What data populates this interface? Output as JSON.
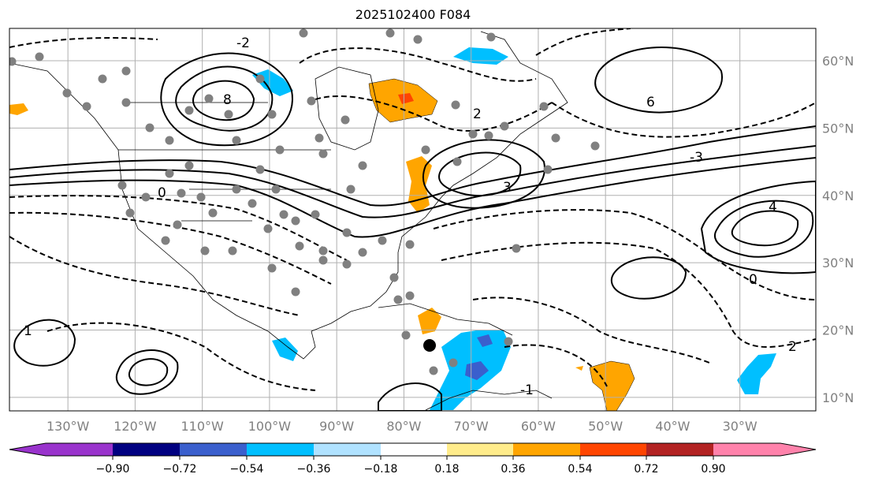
{
  "title": "2025102400 F084",
  "map": {
    "lon_range": [
      -138.7,
      -18.7
    ],
    "lat_range": [
      8,
      64.8
    ],
    "lon_ticks": [
      {
        "value": -130,
        "label": "130°W"
      },
      {
        "value": -120,
        "label": "120°W"
      },
      {
        "value": -110,
        "label": "110°W"
      },
      {
        "value": -100,
        "label": "100°W"
      },
      {
        "value": -90,
        "label": "90°W"
      },
      {
        "value": -80,
        "label": "80°W"
      },
      {
        "value": -70,
        "label": "70°W"
      },
      {
        "value": -60,
        "label": "60°W"
      },
      {
        "value": -50,
        "label": "50°W"
      },
      {
        "value": -40,
        "label": "40°W"
      },
      {
        "value": -30,
        "label": "30°W"
      }
    ],
    "lat_ticks": [
      {
        "value": 60,
        "label": "60°N"
      },
      {
        "value": 50,
        "label": "50°N"
      },
      {
        "value": 40,
        "label": "40°N"
      },
      {
        "value": 30,
        "label": "30°N"
      },
      {
        "value": 20,
        "label": "20°N"
      },
      {
        "value": 10,
        "label": "10°N"
      }
    ],
    "grid_color": "#b0b0b0",
    "contour_labels": [
      "0",
      "2",
      "4",
      "6",
      "8",
      "-2",
      "-3",
      "3",
      "1",
      "-1",
      "0",
      "2"
    ]
  },
  "colorbar": {
    "colors": [
      "#9933cc",
      "#000080",
      "#3a5fcd",
      "#00bfff",
      "#b0e2ff",
      "#ffffff",
      "#ffec8b",
      "#ffa500",
      "#ff4500",
      "#b22222",
      "#ff82ab"
    ],
    "ticks": [
      "−0.90",
      "−0.72",
      "−0.54",
      "−0.36",
      "−0.18",
      "0.18",
      "0.36",
      "0.54",
      "0.72",
      "0.90"
    ]
  }
}
